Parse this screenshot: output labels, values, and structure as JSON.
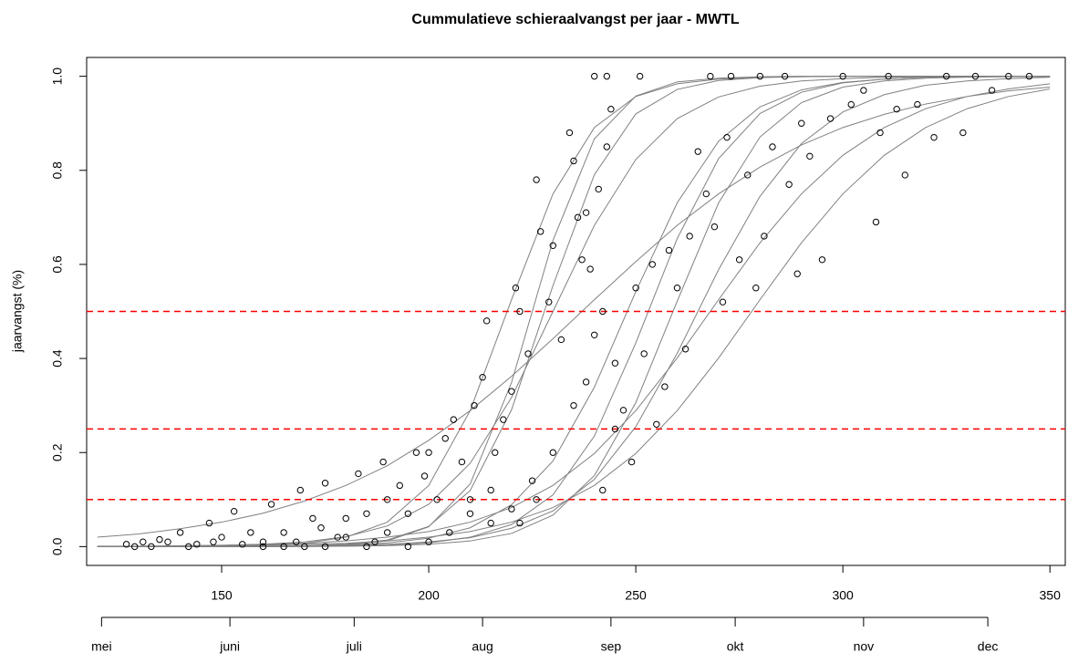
{
  "chart_data": {
    "type": "scatter",
    "title": "Cummulatieve schieraalvangst per jaar - MWTL",
    "ylabel": "jaarvangst (%)",
    "xlim": [
      117.4,
      353.7
    ],
    "ylim": [
      -0.04,
      1.04
    ],
    "xticks": [
      150,
      200,
      250,
      300,
      350
    ],
    "yticks": [
      {
        "value": 0,
        "label": "0.0"
      },
      {
        "value": 0.2,
        "label": "0.2"
      },
      {
        "value": 0.4,
        "label": "0.4"
      },
      {
        "value": 0.6,
        "label": "0.6"
      },
      {
        "value": 0.8,
        "label": "0.8"
      },
      {
        "value": 1,
        "label": "1.0"
      }
    ],
    "month_axis": {
      "ticks": [
        {
          "value": 121,
          "label": "mei"
        },
        {
          "value": 152,
          "label": "juni"
        },
        {
          "value": 182,
          "label": "juli"
        },
        {
          "value": 213,
          "label": "aug"
        },
        {
          "value": 244,
          "label": "sep"
        },
        {
          "value": 274,
          "label": "okt"
        },
        {
          "value": 305,
          "label": "nov"
        },
        {
          "value": 335,
          "label": "dec"
        }
      ]
    },
    "hlines": {
      "color": "#ff0000",
      "dashed": true,
      "values": [
        0.1,
        0.25,
        0.5
      ]
    },
    "curves": {
      "color": "#808080",
      "x": [
        120,
        130,
        140,
        150,
        160,
        170,
        180,
        190,
        200,
        210,
        220,
        230,
        240,
        250,
        260,
        270,
        280,
        290,
        300,
        310,
        320,
        330,
        340,
        350
      ],
      "series": [
        {
          "values": [
            0,
            0,
            0,
            0.001,
            0.003,
            0.007,
            0.02,
            0.052,
            0.13,
            0.289,
            0.525,
            0.75,
            0.891,
            0.957,
            0.984,
            0.994,
            0.998,
            0.999,
            1,
            1,
            1,
            1,
            1,
            1
          ]
        },
        {
          "values": [
            0,
            0,
            0,
            0,
            0,
            0.001,
            0.004,
            0.012,
            0.042,
            0.133,
            0.349,
            0.651,
            0.867,
            0.958,
            0.988,
            0.996,
            0.999,
            1,
            1,
            1,
            1,
            1,
            1,
            1
          ]
        },
        {
          "values": [
            0,
            0,
            0,
            0,
            0.001,
            0.002,
            0.005,
            0.014,
            0.043,
            0.119,
            0.291,
            0.555,
            0.791,
            0.92,
            0.972,
            0.991,
            0.997,
            0.999,
            1,
            1,
            1,
            1,
            1,
            1
          ]
        },
        {
          "values": [
            0,
            0,
            0.001,
            0.002,
            0.005,
            0.01,
            0.021,
            0.044,
            0.09,
            0.177,
            0.317,
            0.5,
            0.683,
            0.823,
            0.91,
            0.956,
            0.979,
            0.99,
            0.995,
            0.998,
            0.999,
            1,
            1,
            1
          ]
        },
        {
          "values": [
            0.02,
            0.027,
            0.038,
            0.052,
            0.071,
            0.097,
            0.13,
            0.172,
            0.226,
            0.289,
            0.362,
            0.442,
            0.525,
            0.606,
            0.683,
            0.75,
            0.807,
            0.854,
            0.891,
            0.919,
            0.941,
            0.957,
            0.969,
            0.977
          ]
        },
        {
          "values": [
            0,
            0,
            0,
            0,
            0.001,
            0.002,
            0.003,
            0.008,
            0.018,
            0.04,
            0.089,
            0.182,
            0.339,
            0.542,
            0.731,
            0.862,
            0.935,
            0.971,
            0.987,
            0.994,
            0.998,
            0.999,
            1,
            1
          ]
        },
        {
          "values": [
            0,
            0,
            0,
            0,
            0,
            0.001,
            0.001,
            0.003,
            0.008,
            0.02,
            0.047,
            0.11,
            0.235,
            0.433,
            0.655,
            0.825,
            0.921,
            0.966,
            0.986,
            0.994,
            0.998,
            0.999,
            1,
            1
          ]
        },
        {
          "values": [
            0,
            0,
            0,
            0,
            0,
            0,
            0.001,
            0.002,
            0.005,
            0.012,
            0.028,
            0.067,
            0.151,
            0.306,
            0.522,
            0.731,
            0.871,
            0.944,
            0.977,
            0.99,
            0.996,
            0.998,
            0.999,
            1
          ]
        },
        {
          "values": [
            0,
            0,
            0,
            0,
            0.001,
            0.001,
            0.002,
            0.005,
            0.01,
            0.019,
            0.039,
            0.076,
            0.143,
            0.255,
            0.411,
            0.589,
            0.745,
            0.857,
            0.924,
            0.961,
            0.981,
            0.99,
            0.995,
            0.998
          ]
        },
        {
          "values": [
            0.001,
            0.001,
            0.002,
            0.003,
            0.005,
            0.007,
            0.012,
            0.02,
            0.032,
            0.052,
            0.083,
            0.13,
            0.198,
            0.289,
            0.401,
            0.525,
            0.646,
            0.75,
            0.832,
            0.891,
            0.931,
            0.957,
            0.973,
            0.984
          ]
        },
        {
          "values": [
            0,
            0.001,
            0.001,
            0.002,
            0.003,
            0.005,
            0.007,
            0.012,
            0.02,
            0.032,
            0.052,
            0.083,
            0.13,
            0.198,
            0.289,
            0.401,
            0.525,
            0.646,
            0.75,
            0.832,
            0.891,
            0.931,
            0.957,
            0.973
          ]
        }
      ]
    },
    "points": {
      "color": "#000000",
      "x": [
        127,
        129,
        131,
        133,
        135,
        137,
        140,
        142,
        144,
        147,
        148,
        150,
        153,
        155,
        157,
        160,
        162,
        165,
        168,
        169,
        172,
        174,
        175,
        178,
        180,
        183,
        185,
        187,
        189,
        190,
        193,
        195,
        197,
        199,
        200,
        202,
        204,
        206,
        208,
        210,
        211,
        213,
        214,
        216,
        218,
        220,
        221,
        222,
        224,
        226,
        227,
        229,
        230,
        232,
        234,
        235,
        236,
        237,
        238,
        239,
        240,
        241,
        242,
        243,
        243,
        244,
        242,
        245,
        247,
        249,
        250,
        251,
        252,
        254,
        255,
        257,
        258,
        260,
        262,
        263,
        265,
        267,
        268,
        269,
        271,
        272,
        273,
        275,
        277,
        279,
        280,
        281,
        283,
        286,
        287,
        289,
        290,
        292,
        295,
        297,
        300,
        302,
        305,
        308,
        309,
        311,
        313,
        315,
        318,
        322,
        325,
        329,
        332,
        336,
        340,
        345,
        210,
        215,
        220,
        225,
        230,
        235,
        238,
        240,
        245,
        200,
        195,
        190,
        185,
        180,
        175,
        170,
        165,
        160,
        205,
        215,
        222,
        226
      ],
      "y": [
        0.005,
        0,
        0.01,
        0,
        0.015,
        0.01,
        0.03,
        0,
        0.005,
        0.05,
        0.01,
        0.02,
        0.075,
        0.005,
        0.03,
        0.01,
        0.09,
        0.03,
        0.01,
        0.12,
        0.06,
        0.04,
        0.135,
        0.02,
        0.06,
        0.155,
        0.07,
        0.01,
        0.18,
        0.1,
        0.13,
        0.07,
        0.2,
        0.15,
        0.2,
        0.1,
        0.23,
        0.27,
        0.18,
        0.07,
        0.3,
        0.36,
        0.48,
        0.2,
        0.27,
        0.33,
        0.55,
        0.5,
        0.41,
        0.78,
        0.67,
        0.52,
        0.64,
        0.44,
        0.88,
        0.82,
        0.7,
        0.61,
        0.71,
        0.59,
        1,
        0.76,
        0.5,
        1,
        0.85,
        0.93,
        0.12,
        0.25,
        0.29,
        0.18,
        0.55,
        1,
        0.41,
        0.6,
        0.26,
        0.34,
        0.63,
        0.55,
        0.42,
        0.66,
        0.84,
        0.75,
        1,
        0.68,
        0.52,
        0.87,
        1,
        0.61,
        0.79,
        0.55,
        1,
        0.66,
        0.85,
        1,
        0.77,
        0.58,
        0.9,
        0.83,
        0.61,
        0.91,
        1,
        0.94,
        0.97,
        0.69,
        0.88,
        1,
        0.93,
        0.79,
        0.94,
        0.87,
        1,
        0.88,
        1,
        0.97,
        1,
        1,
        0.1,
        0.12,
        0.08,
        0.14,
        0.2,
        0.3,
        0.35,
        0.45,
        0.39,
        0.01,
        0,
        0.03,
        0,
        0.02,
        0,
        0,
        0,
        0,
        0.03,
        0.05,
        0.05,
        0.1
      ]
    }
  }
}
